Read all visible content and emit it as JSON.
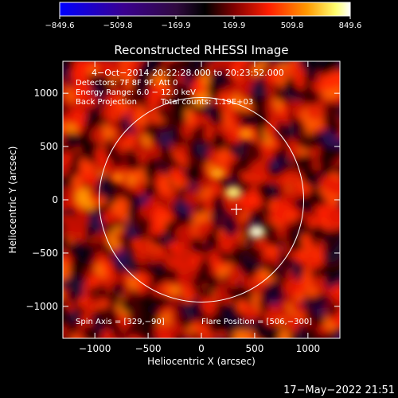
{
  "chart_data": {
    "type": "heatmap",
    "title": "Reconstructed RHESSI Image",
    "xlabel": "Heliocentric X (arcsec)",
    "ylabel": "Heliocentric Y (arcsec)",
    "xlim": [
      -1300,
      1300
    ],
    "ylim": [
      -1300,
      1300
    ],
    "xticks": [
      -1000,
      -500,
      0,
      500,
      1000
    ],
    "yticks": [
      -1000,
      -500,
      0,
      500,
      1000
    ],
    "xtick_labels": [
      "−1000",
      "−500",
      "0",
      "500",
      "1000"
    ],
    "ytick_labels": [
      "−1000",
      "−500",
      "0",
      "500",
      "1000"
    ],
    "colorbar": {
      "min": -849.6,
      "max": 849.6,
      "ticks": [
        -849.6,
        -509.8,
        -169.9,
        169.9,
        509.8,
        849.6
      ],
      "tick_labels": [
        "−849.6",
        "−509.8",
        "−169.9",
        "169.9",
        "509.8",
        "849.6"
      ],
      "colormap": [
        "#0000ff",
        "#3a00a0",
        "#3a1060",
        "#000000",
        "#8a0000",
        "#ff2000",
        "#ff9a00",
        "#ffff60",
        "#ffffff"
      ]
    },
    "annotations": {
      "time_range": "4−Oct−2014 20:22:28.000 to 20:23:52.000",
      "detectors": "Detectors: 7F 8F 9F, Att 0",
      "energy_range": "Energy Range: 6.0 − 12.0 keV",
      "method": "Back Projection",
      "total_counts": "Total counts: 1.19E+03",
      "spin_axis": "Spin Axis = [329,−90]",
      "flare_position": "Flare Position = [506,−300]"
    },
    "solar_disk": {
      "center": [
        0,
        0
      ],
      "radius_arcsec": 960
    },
    "spin_axis_marker": [
      329,
      -90
    ],
    "bright_sources": [
      {
        "x": 520,
        "y": -300,
        "value": 849.6
      },
      {
        "x": 300,
        "y": 70,
        "value": 700
      },
      {
        "x": 150,
        "y": 250,
        "value": 480
      },
      {
        "x": 420,
        "y": 620,
        "value": 420
      },
      {
        "x": -780,
        "y": 210,
        "value": 380
      }
    ],
    "grid": false
  },
  "footer": {
    "timestamp": "17−May−2022 21:51"
  }
}
